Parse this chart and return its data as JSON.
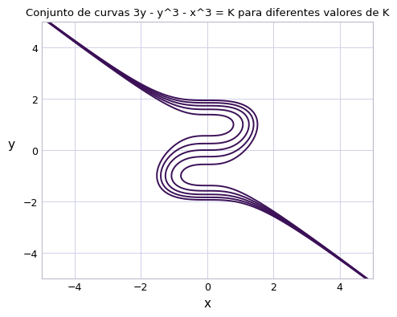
{
  "title": "Conjunto de curvas 3y - y^3 - x^3 = K para diferentes valores de K",
  "xlabel": "x",
  "ylabel": "y",
  "xlim": [
    -5,
    5
  ],
  "ylim": [
    -5,
    5
  ],
  "x_range": [
    -5.5,
    5.5
  ],
  "y_range": [
    -5.5,
    5.5
  ],
  "K_values": [
    -1.5,
    -0.75,
    0.0,
    0.75,
    1.5
  ],
  "line_color": "#3b1057",
  "line_width": 1.4,
  "background_color": "#ffffff",
  "grid_color": "#d0d0e8",
  "title_fontsize": 9.5,
  "axis_label_fontsize": 11,
  "tick_fontsize": 9
}
